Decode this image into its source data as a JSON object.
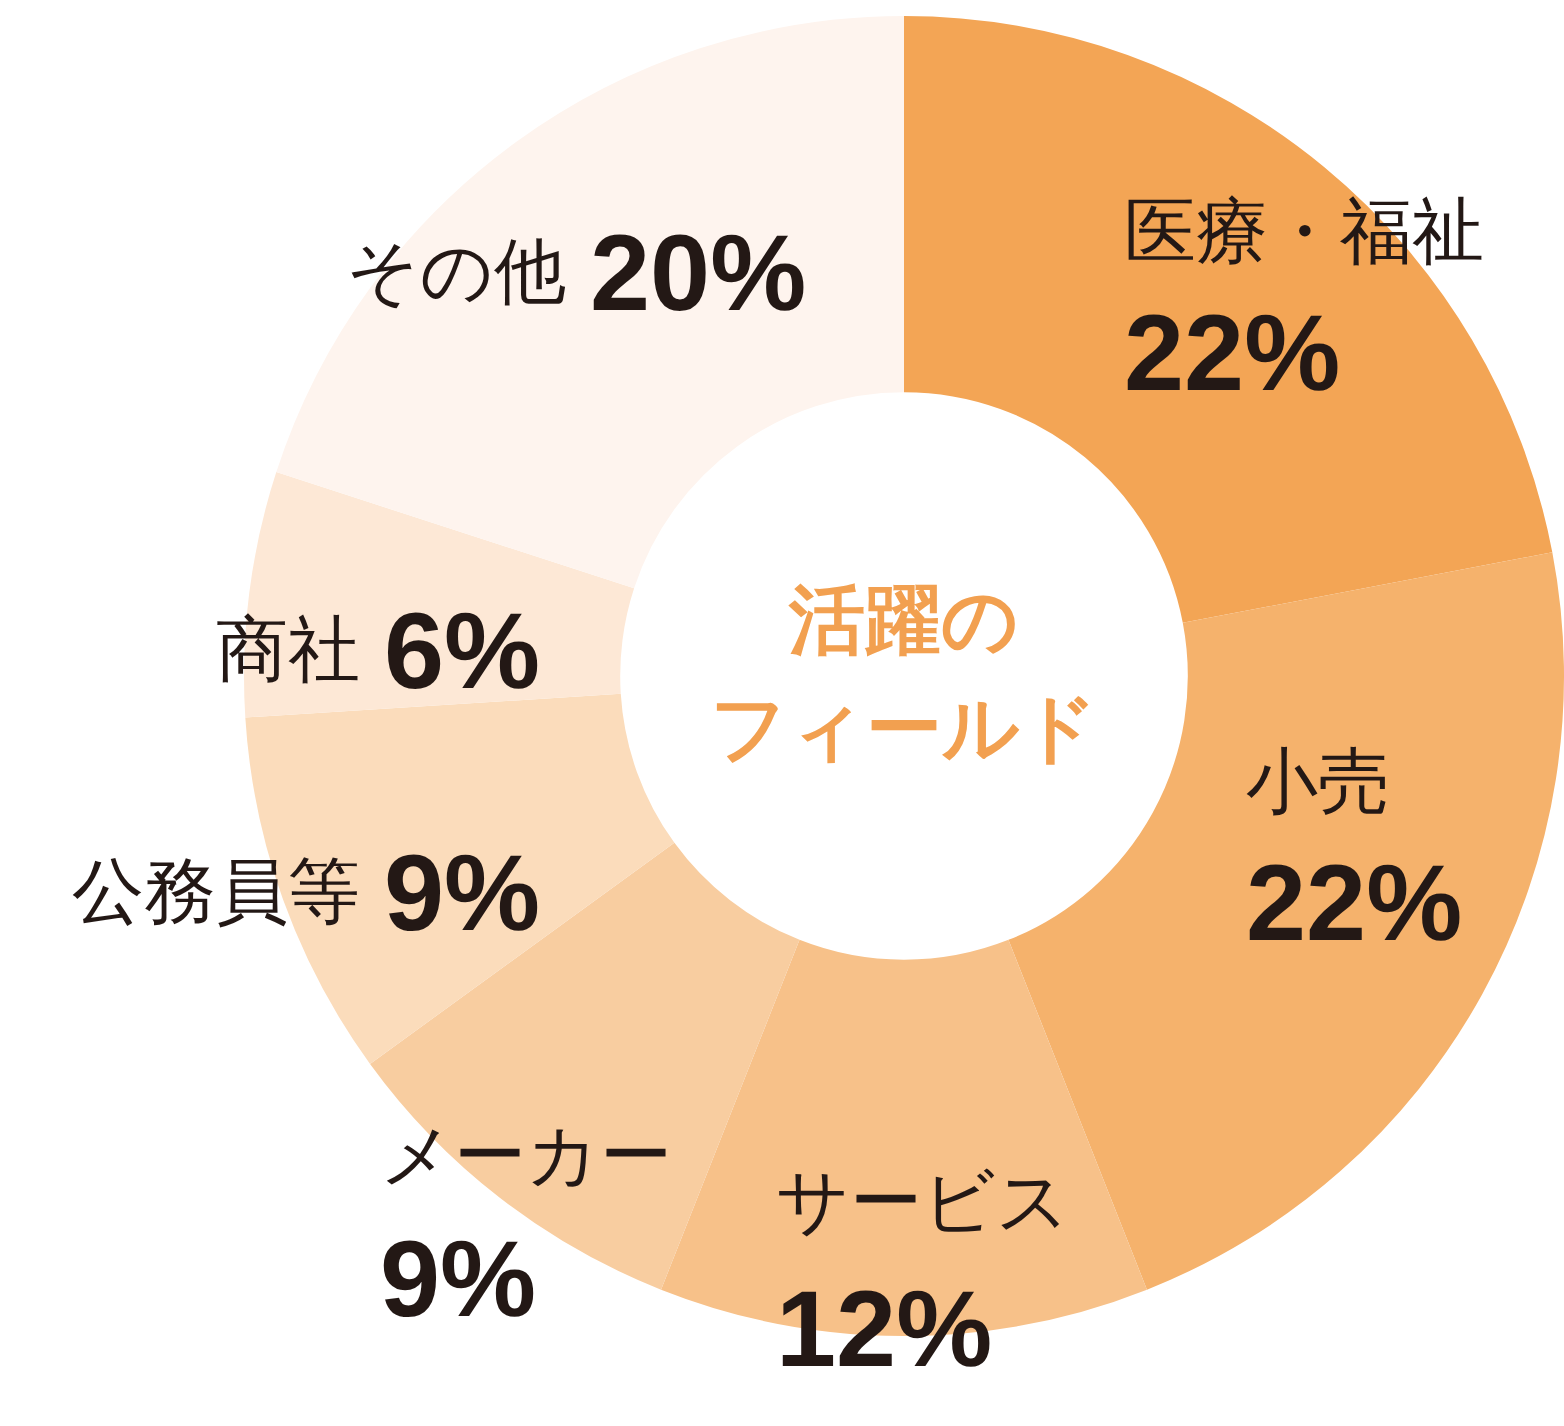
{
  "chart_data": {
    "type": "donut",
    "title": "活躍のフィールド",
    "categories": [
      "医療・福祉",
      "小売",
      "サービス",
      "メーカー",
      "公務員等",
      "商社",
      "その他"
    ],
    "values": [
      22,
      22,
      12,
      9,
      9,
      6,
      20
    ],
    "value_labels": [
      "22%",
      "22%",
      "12%",
      "9%",
      "9%",
      "6%",
      "20%"
    ],
    "colors": [
      "#f3a555",
      "#f5b26c",
      "#f7c189",
      "#f8cda0",
      "#fbdcbb",
      "#fde8d6",
      "#fef4ee"
    ]
  }
}
